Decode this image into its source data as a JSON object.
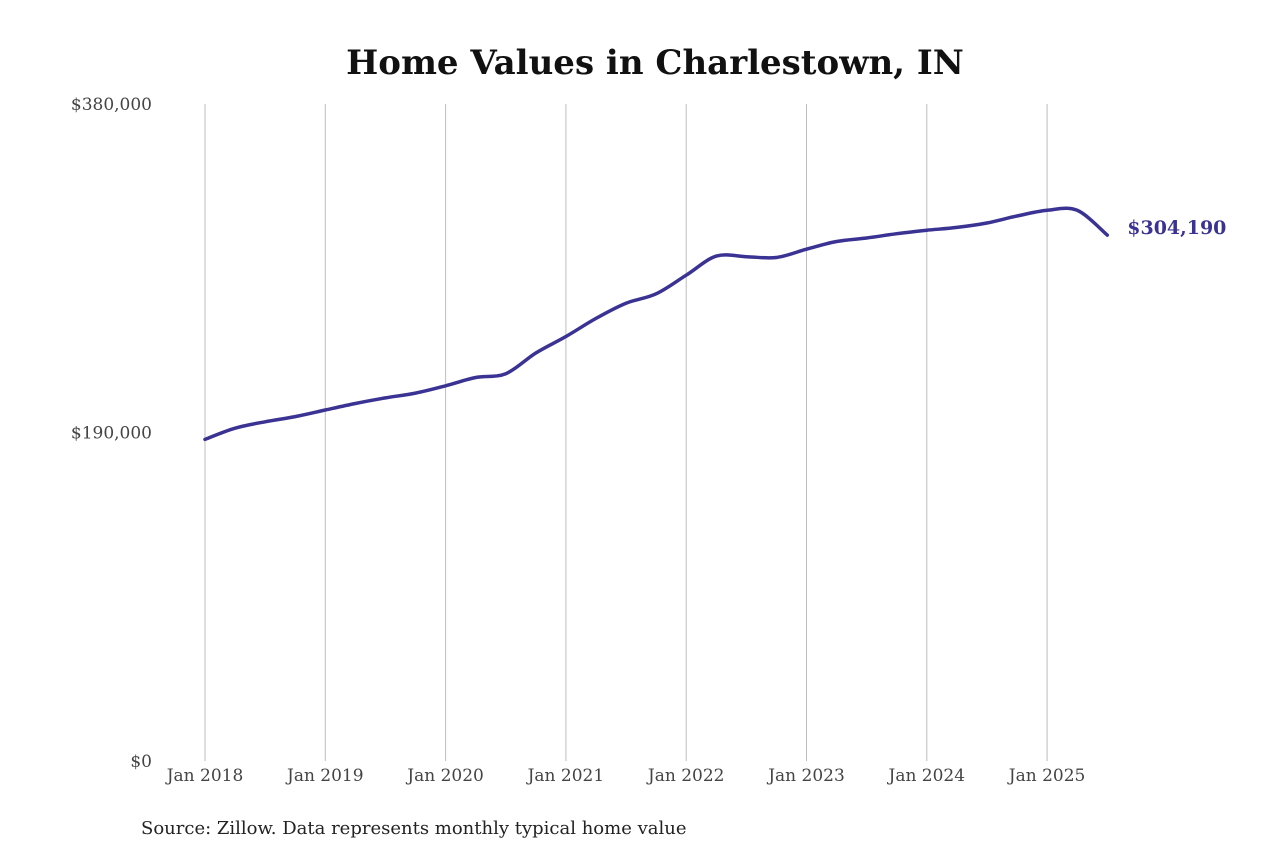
{
  "chart_data": {
    "type": "line",
    "title": "Home Values in Charlestown, IN",
    "xlabel": "",
    "ylabel": "",
    "ylim": [
      0,
      380000
    ],
    "y_ticks": [
      {
        "value": 0,
        "label": "$0"
      },
      {
        "value": 190000,
        "label": "$190,000"
      },
      {
        "value": 380000,
        "label": "$380,000"
      }
    ],
    "x_ticks": [
      "Jan 2018",
      "Jan 2019",
      "Jan 2020",
      "Jan 2021",
      "Jan 2022",
      "Jan 2023",
      "Jan 2024",
      "Jan 2025"
    ],
    "grid": "vertical",
    "line_color": "#3b3393",
    "end_label": "$304,190",
    "series": [
      {
        "x": [
          "Jan 2018",
          "Apr 2018",
          "Jul 2018",
          "Oct 2018",
          "Jan 2019",
          "Apr 2019",
          "Jul 2019",
          "Oct 2019",
          "Jan 2020",
          "Apr 2020",
          "Jul 2020",
          "Oct 2020",
          "Jan 2021",
          "Apr 2021",
          "Jul 2021",
          "Oct 2021",
          "Jan 2022",
          "Apr 2022",
          "Jul 2022",
          "Oct 2022",
          "Jan 2023",
          "Apr 2023",
          "Jul 2023",
          "Oct 2023",
          "Jan 2024",
          "Apr 2024",
          "Jul 2024",
          "Oct 2024",
          "Jan 2025",
          "Apr 2025",
          "Jul 2025"
        ],
        "values": [
          186000,
          192500,
          196200,
          199200,
          203000,
          206800,
          210000,
          212800,
          217000,
          221800,
          224000,
          236000,
          245500,
          256000,
          264800,
          270200,
          281000,
          292000,
          291700,
          291200,
          296000,
          300500,
          302500,
          305000,
          307000,
          308600,
          311200,
          315200,
          318500,
          318500,
          304190
        ]
      }
    ]
  },
  "source_note": "Source: Zillow. Data represents monthly typical home value"
}
